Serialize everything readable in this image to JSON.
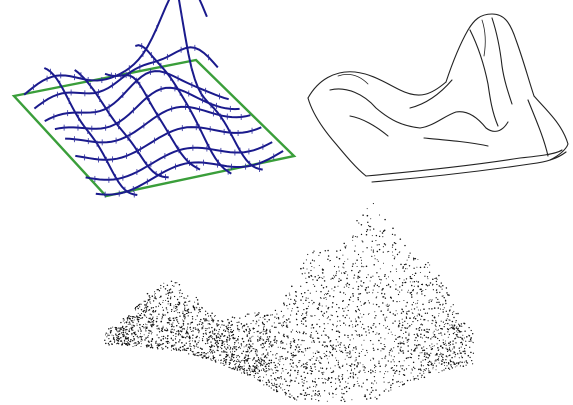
{
  "figure": {
    "panels": [
      {
        "id": "curve-network",
        "description_visible_text": ""
      },
      {
        "id": "sketch-strokes",
        "description_visible_text": ""
      },
      {
        "id": "point-cloud",
        "description_visible_text": ""
      }
    ]
  },
  "colors": {
    "background": "#ffffff",
    "base_frame": "#3a9e3a",
    "curves": "#1a1a8c",
    "curve_ticks": "#2b2b9e",
    "sketch_strokes": "#222222",
    "points": "#111111"
  }
}
